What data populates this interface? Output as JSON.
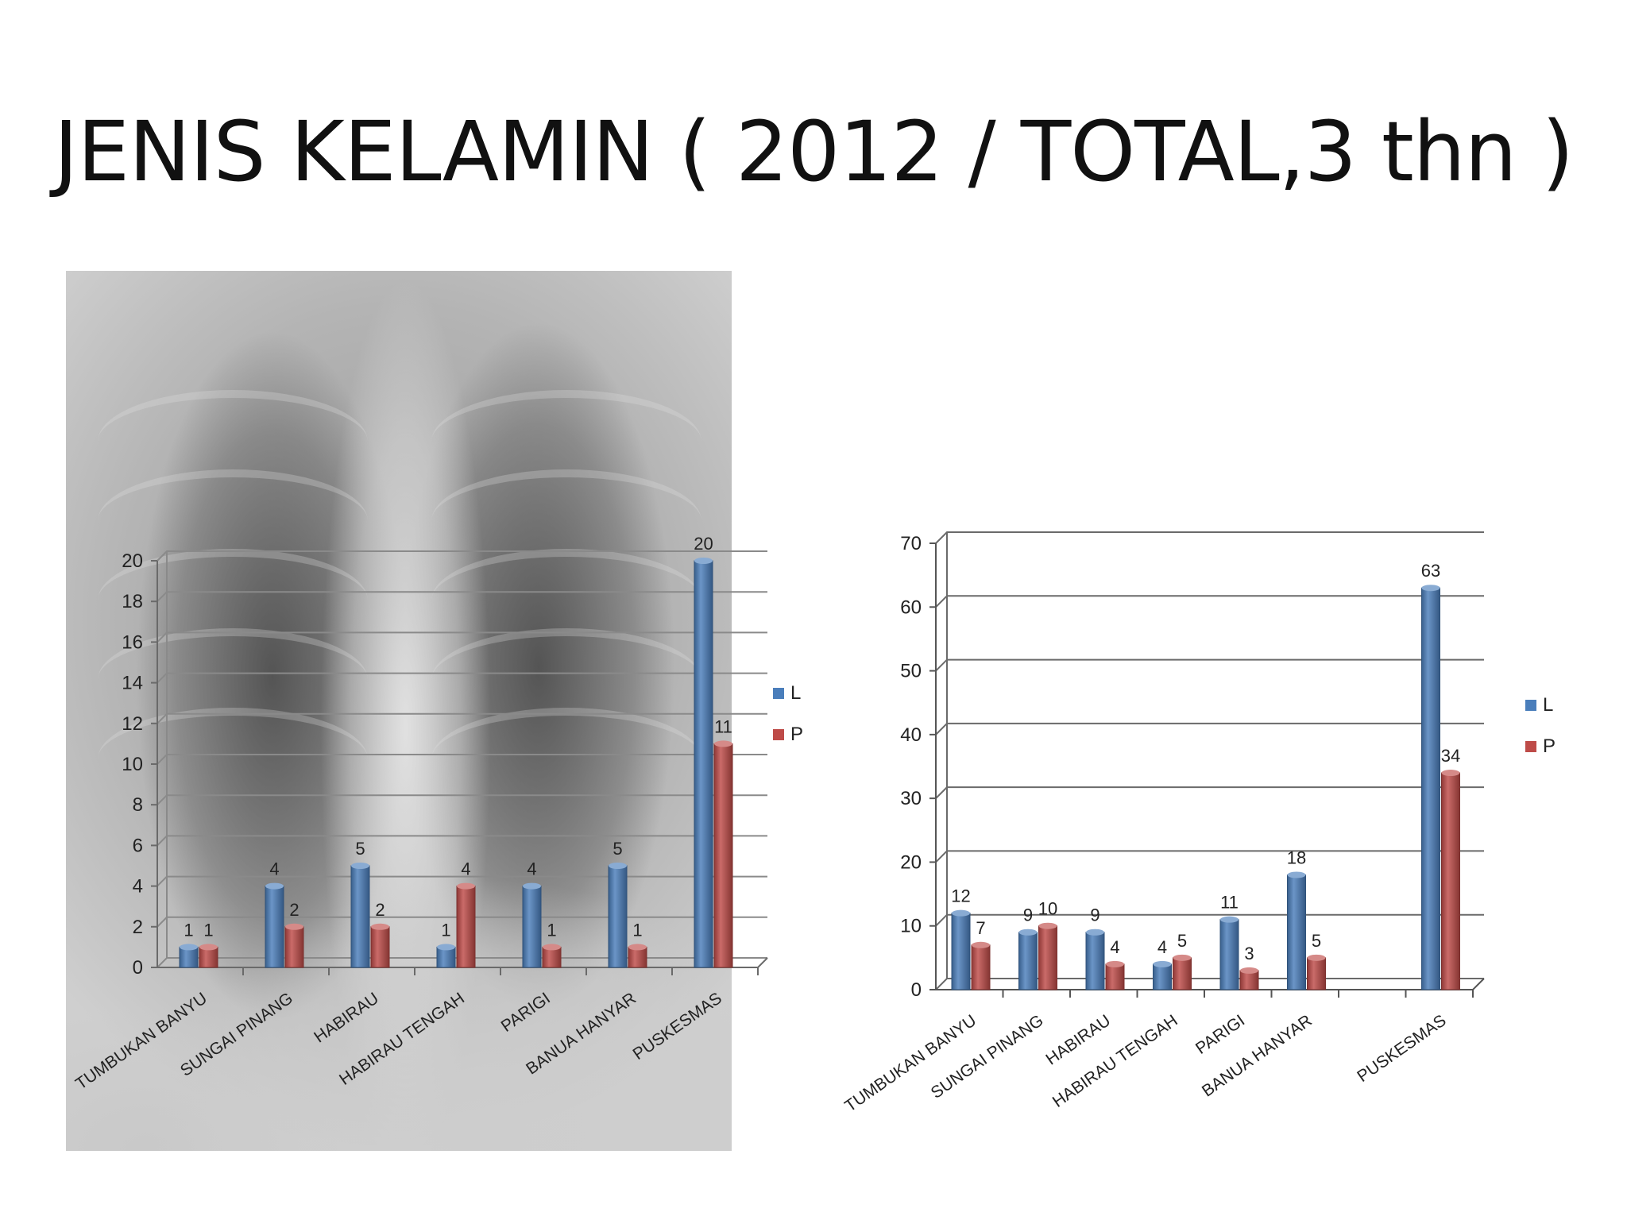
{
  "slide": {
    "title": "JENIS KELAMIN ( 2012 / TOTAL,3 thn )"
  },
  "colors": {
    "L": "#4a7ebb",
    "P": "#be4b48"
  },
  "chart_data": [
    {
      "type": "bar",
      "title": "",
      "background": "chest x-ray image",
      "categories": [
        "TUMBUKAN BANYU",
        "SUNGAI PINANG",
        "HABIRAU",
        "HABIRAU TENGAH",
        "PARIGI",
        "BANUA HANYAR",
        "PUSKESMAS"
      ],
      "series": [
        {
          "name": "L",
          "values": [
            1,
            4,
            5,
            1,
            4,
            5,
            20
          ],
          "labels": [
            "1",
            "4",
            "5",
            "1",
            "4",
            "5",
            "20"
          ]
        },
        {
          "name": "P",
          "values": [
            1,
            2,
            2,
            4,
            1,
            1,
            11
          ],
          "labels": [
            "1",
            "2",
            "2",
            "4",
            "1",
            "1",
            "11"
          ]
        }
      ],
      "ylim": [
        0,
        20
      ],
      "yticks": [
        "0",
        "2",
        "4",
        "6",
        "8",
        "10",
        "12",
        "14",
        "16",
        "18",
        "20"
      ],
      "grid": true,
      "legend": "right"
    },
    {
      "type": "bar",
      "title": "",
      "categories": [
        "TUMBUKAN BANYU",
        "SUNGAI PINANG",
        "HABIRAU",
        "HABIRAU TENGAH",
        "PARIGI",
        "BANUA HANYAR",
        "",
        "PUSKESMAS"
      ],
      "series": [
        {
          "name": "L",
          "values": [
            12,
            9,
            9,
            4,
            11,
            18,
            null,
            63
          ],
          "labels": [
            "12",
            "9",
            "9",
            "4",
            "11",
            "18",
            "",
            "63"
          ]
        },
        {
          "name": "P",
          "values": [
            7,
            10,
            4,
            5,
            3,
            5,
            null,
            34
          ],
          "labels": [
            "7",
            "10",
            "4",
            "5",
            "3",
            "5",
            "",
            "34"
          ]
        }
      ],
      "ylim": [
        0,
        70
      ],
      "yticks": [
        "0",
        "10",
        "20",
        "30",
        "40",
        "50",
        "60",
        "70"
      ],
      "grid": true,
      "legend": "right"
    }
  ]
}
